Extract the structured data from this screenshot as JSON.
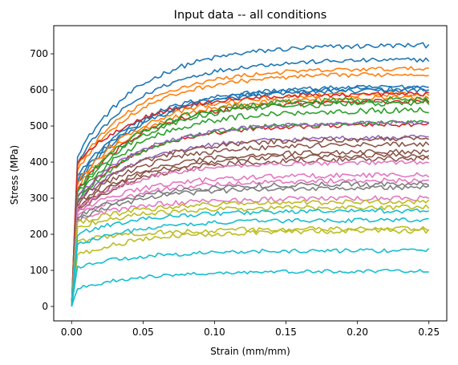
{
  "chart_data": {
    "type": "line",
    "title": "Input data -- all conditions",
    "xlabel": "Strain (mm/mm)",
    "ylabel": "Stress (MPa)",
    "xlim": [
      -0.0125,
      0.2625
    ],
    "ylim": [
      -40,
      778
    ],
    "x_ticks": [
      0.0,
      0.05,
      0.1,
      0.15,
      0.2,
      0.25
    ],
    "x_tick_labels": [
      "0.00",
      "0.05",
      "0.10",
      "0.15",
      "0.20",
      "0.25"
    ],
    "y_ticks": [
      0,
      100,
      200,
      300,
      400,
      500,
      600,
      700
    ],
    "y_tick_labels": [
      "0",
      "100",
      "200",
      "300",
      "400",
      "500",
      "600",
      "700"
    ],
    "grid": false,
    "legend": "none",
    "x_range": [
      0.0,
      0.25
    ],
    "point_count": 120,
    "series": [
      {
        "color": "#1f77b4",
        "yield": 420,
        "plateau": 725,
        "noise": 7
      },
      {
        "color": "#1f77b4",
        "yield": 400,
        "plateau": 685,
        "noise": 6
      },
      {
        "color": "#1f77b4",
        "yield": 360,
        "plateau": 610,
        "noise": 6
      },
      {
        "color": "#1f77b4",
        "yield": 350,
        "plateau": 605,
        "noise": 7
      },
      {
        "color": "#1f77b4",
        "yield": 340,
        "plateau": 600,
        "noise": 6
      },
      {
        "color": "#ff7f0e",
        "yield": 390,
        "plateau": 660,
        "noise": 6
      },
      {
        "color": "#ff7f0e",
        "yield": 380,
        "plateau": 645,
        "noise": 6
      },
      {
        "color": "#ff7f0e",
        "yield": 340,
        "plateau": 590,
        "noise": 7
      },
      {
        "color": "#ff7f0e",
        "yield": 330,
        "plateau": 580,
        "noise": 7
      },
      {
        "color": "#d62728",
        "yield": 400,
        "plateau": 590,
        "noise": 6
      },
      {
        "color": "#d62728",
        "yield": 320,
        "plateau": 570,
        "noise": 7
      },
      {
        "color": "#d62728",
        "yield": 300,
        "plateau": 505,
        "noise": 6
      },
      {
        "color": "#2ca02c",
        "yield": 320,
        "plateau": 575,
        "noise": 8
      },
      {
        "color": "#2ca02c",
        "yield": 310,
        "plateau": 565,
        "noise": 8
      },
      {
        "color": "#2ca02c",
        "yield": 300,
        "plateau": 545,
        "noise": 8
      },
      {
        "color": "#2ca02c",
        "yield": 290,
        "plateau": 510,
        "noise": 7
      },
      {
        "color": "#9467bd",
        "yield": 300,
        "plateau": 510,
        "noise": 6
      },
      {
        "color": "#9467bd",
        "yield": 290,
        "plateau": 470,
        "noise": 6
      },
      {
        "color": "#8c564b",
        "yield": 290,
        "plateau": 465,
        "noise": 7
      },
      {
        "color": "#8c564b",
        "yield": 280,
        "plateau": 450,
        "noise": 7
      },
      {
        "color": "#8c564b",
        "yield": 270,
        "plateau": 430,
        "noise": 7
      },
      {
        "color": "#8c564b",
        "yield": 270,
        "plateau": 420,
        "noise": 7
      },
      {
        "color": "#8c564b",
        "yield": 260,
        "plateau": 410,
        "noise": 7
      },
      {
        "color": "#e377c2",
        "yield": 270,
        "plateau": 400,
        "noise": 6
      },
      {
        "color": "#e377c2",
        "yield": 260,
        "plateau": 365,
        "noise": 7
      },
      {
        "color": "#e377c2",
        "yield": 250,
        "plateau": 350,
        "noise": 7
      },
      {
        "color": "#e377c2",
        "yield": 240,
        "plateau": 300,
        "noise": 7
      },
      {
        "color": "#7f7f7f",
        "yield": 250,
        "plateau": 340,
        "noise": 7
      },
      {
        "color": "#7f7f7f",
        "yield": 240,
        "plateau": 330,
        "noise": 7
      },
      {
        "color": "#bcbd22",
        "yield": 230,
        "plateau": 290,
        "noise": 7
      },
      {
        "color": "#bcbd22",
        "yield": 220,
        "plateau": 275,
        "noise": 7
      },
      {
        "color": "#bcbd22",
        "yield": 180,
        "plateau": 215,
        "noise": 7
      },
      {
        "color": "#bcbd22",
        "yield": 140,
        "plateau": 210,
        "noise": 7
      },
      {
        "color": "#17becf",
        "yield": 200,
        "plateau": 265,
        "noise": 6
      },
      {
        "color": "#17becf",
        "yield": 170,
        "plateau": 240,
        "noise": 6
      },
      {
        "color": "#17becf",
        "yield": 110,
        "plateau": 155,
        "noise": 6
      },
      {
        "color": "#17becf",
        "yield": 50,
        "plateau": 98,
        "noise": 5
      }
    ]
  }
}
